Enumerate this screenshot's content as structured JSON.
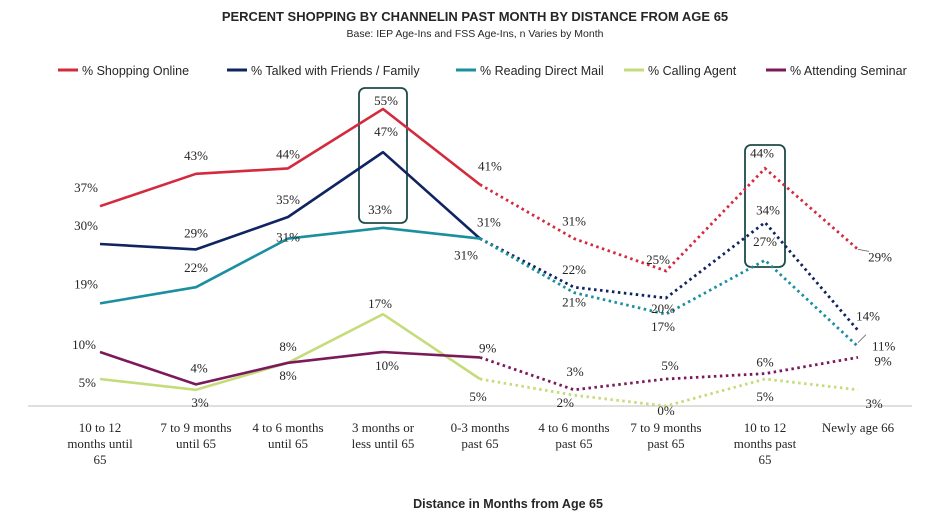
{
  "chart_data": {
    "type": "line",
    "title": "PERCENT SHOPPING BY CHANNELIN PAST MONTH BY DISTANCE FROM AGE 65",
    "subtitle": "Base: IEP Age-Ins and FSS Age-Ins, n Varies by Month",
    "xlabel": "Distance in Months from Age 65",
    "ylabel": "",
    "ylim": [
      0,
      60
    ],
    "legend_position": "top",
    "categories": [
      [
        "10 to 12",
        "months until",
        "65"
      ],
      [
        "7 to 9 months",
        "until 65"
      ],
      [
        "4 to 6 months",
        "until 65"
      ],
      [
        "3 months or",
        "less until 65"
      ],
      [
        "0-3 months",
        "past 65"
      ],
      [
        "4 to 6 months",
        "past 65"
      ],
      [
        "7 to 9 months",
        "past 65"
      ],
      [
        "10 to 12",
        "months past",
        "65"
      ],
      [
        "Newly age 66"
      ]
    ],
    "solid_until_index": 4,
    "series": [
      {
        "name": "% Shopping Online",
        "color": "#d32a3e",
        "values": [
          37,
          43,
          44,
          55,
          41,
          31,
          25,
          44,
          29
        ],
        "labels": [
          "37%",
          "43%",
          "44%",
          "55%",
          "41%",
          "31%",
          "25%",
          "44%",
          "29%"
        ]
      },
      {
        "name": "% Talked with Friends / Family",
        "color": "#0f2461",
        "values": [
          30,
          29,
          35,
          47,
          31,
          22,
          20,
          34,
          14
        ],
        "labels": [
          "30%",
          "29%",
          "35%",
          "47%",
          "31%",
          "22%",
          "20%",
          "34%",
          "14%"
        ]
      },
      {
        "name": "% Reading Direct Mail",
        "color": "#1a8fa0",
        "values": [
          19,
          22,
          31,
          33,
          31,
          21,
          17,
          27,
          11
        ],
        "labels": [
          "19%",
          "22%",
          "31%",
          "33%",
          "31%",
          "21%",
          "17%",
          "27%",
          "11%"
        ]
      },
      {
        "name": "% Calling  Agent",
        "color": "#c5dc7a",
        "values": [
          5,
          3,
          8,
          17,
          5,
          2,
          0,
          5,
          3
        ],
        "labels": [
          "5%",
          "3%",
          "8%",
          "17%",
          "5%",
          "2%",
          "0%",
          "5%",
          "3%"
        ]
      },
      {
        "name": "% Attending Seminar",
        "color": "#7b1a5b",
        "values": [
          10,
          4,
          8,
          10,
          9,
          3,
          5,
          6,
          9
        ],
        "labels": [
          "10%",
          "4%",
          "8%",
          "10%",
          "9%",
          "3%",
          "5%",
          "6%",
          "9%"
        ]
      }
    ],
    "highlight_boxes": [
      {
        "category_index": 3,
        "color": "#1e4a4a"
      },
      {
        "category_index": 7,
        "color": "#1e4a4a"
      }
    ]
  }
}
